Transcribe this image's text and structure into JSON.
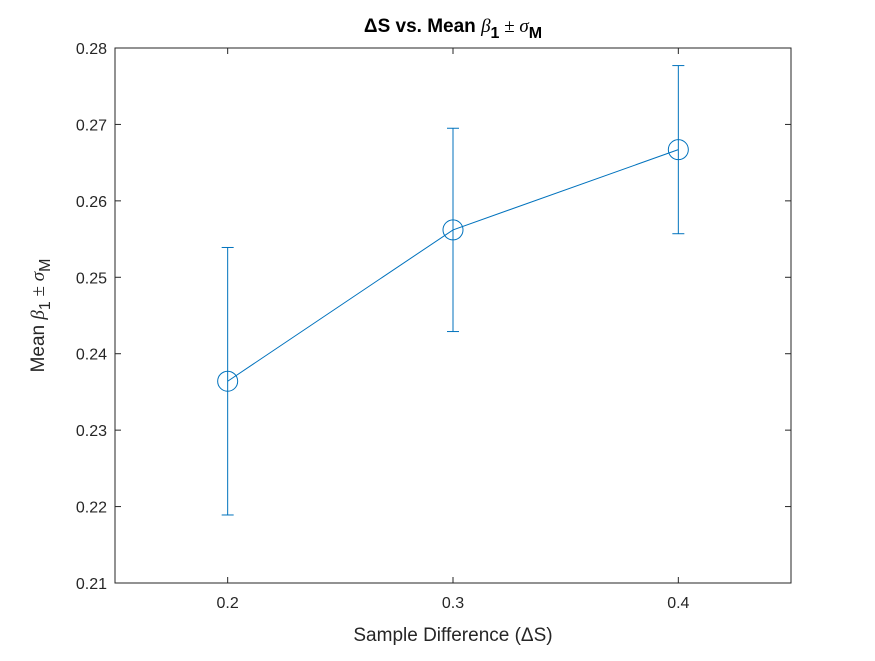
{
  "chart_data": {
    "type": "line",
    "title": "ΔS vs. Mean β1 ± σM",
    "xlabel": "Sample Difference (ΔS)",
    "ylabel": "Mean β1 ± σM",
    "xlim": [
      0.15,
      0.45
    ],
    "ylim": [
      0.21,
      0.28
    ],
    "x_ticks": [
      "0.2",
      "0.3",
      "0.4"
    ],
    "y_ticks": [
      "0.21",
      "0.22",
      "0.23",
      "0.24",
      "0.25",
      "0.26",
      "0.27",
      "0.28"
    ],
    "grid": false,
    "legend": "none",
    "series": [
      {
        "x": [
          0.2,
          0.3,
          0.4
        ],
        "y": [
          0.2364,
          0.2562,
          0.2667
        ],
        "error": [
          0.0175,
          0.0133,
          0.011
        ],
        "marker": "circle",
        "color": "#0072BD"
      }
    ]
  }
}
